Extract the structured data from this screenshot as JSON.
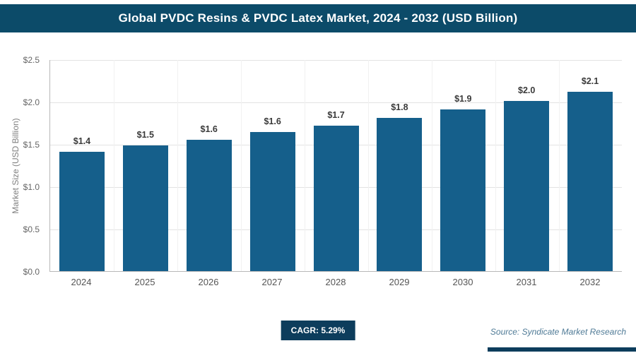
{
  "header": {
    "title": "Global PVDC Resins & PVDC Latex Market, 2024 - 2032 (USD Billion)"
  },
  "chart_data": {
    "type": "bar",
    "title": "Global PVDC Resins & PVDC Latex Market, 2024 - 2032 (USD Billion)",
    "categories": [
      "2024",
      "2025",
      "2026",
      "2027",
      "2028",
      "2029",
      "2030",
      "2031",
      "2032"
    ],
    "values": [
      1.41,
      1.48,
      1.55,
      1.64,
      1.72,
      1.81,
      1.91,
      2.01,
      2.12
    ],
    "labels": [
      "$1.4",
      "$1.5",
      "$1.6",
      "$1.6",
      "$1.7",
      "$1.8",
      "$1.9",
      "$2.0",
      "$2.1"
    ],
    "xlabel": "",
    "ylabel": "Market Size (USD Billion)",
    "ylim": [
      0,
      2.5
    ],
    "yticks": [
      "$0.0",
      "$0.5",
      "$1.0",
      "$1.5",
      "$2.0",
      "$2.5"
    ],
    "grid": true,
    "legend": "none",
    "bar_color": "#155f8b"
  },
  "footer": {
    "cagr_label": "CAGR: 5.29%",
    "source": "Source: Syndicate Market Research"
  },
  "colors": {
    "title_bar": "#0c4b69",
    "bar": "#155f8b",
    "badge": "#0d3d5c",
    "gridline": "#e3e3e3"
  }
}
